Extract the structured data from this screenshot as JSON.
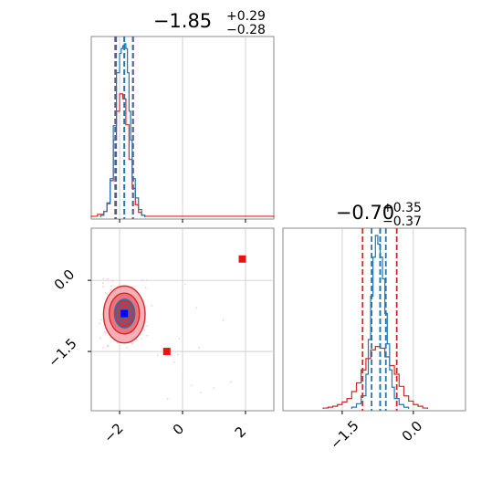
{
  "chart_data": [
    {
      "type": "histogram",
      "panel": "p0 marginal",
      "title": {
        "main": "−1.85",
        "sup": "+0.29",
        "sub": "−0.28"
      },
      "xlim": [
        -2.9,
        2.9
      ],
      "grid": true,
      "quantile_lines": {
        "red": [
          -2.14,
          -1.85,
          -1.57
        ],
        "blue": [
          -2.11,
          -1.85,
          -1.58
        ]
      },
      "red_hist": {
        "bin_edges": [
          -2.9,
          -2.7,
          -2.5,
          -2.4,
          -2.3,
          -2.2,
          -2.1,
          -2.0,
          -1.9,
          -1.8,
          -1.7,
          -1.6,
          -1.5,
          -1.4,
          -1.3,
          -1.2,
          -1.0,
          0.0,
          1.0,
          2.0,
          2.9
        ],
        "counts": [
          1,
          3,
          6,
          14,
          38,
          80,
          110,
          128,
          123,
          96,
          60,
          30,
          13,
          5,
          2,
          1,
          1,
          1,
          1,
          1
        ]
      },
      "blue_hist": {
        "bin_edges": [
          -2.6,
          -2.5,
          -2.4,
          -2.3,
          -2.2,
          -2.1,
          -2.0,
          -1.95,
          -1.9,
          -1.85,
          -1.8,
          -1.75,
          -1.7,
          -1.65,
          -1.6,
          -1.5,
          -1.4,
          -1.3,
          -1.2
        ],
        "counts": [
          2,
          6,
          15,
          40,
          95,
          150,
          170,
          175,
          178,
          180,
          175,
          150,
          110,
          80,
          40,
          20,
          8,
          2
        ]
      }
    },
    {
      "type": "scatter",
      "panel": "p0 vs p1 contours",
      "xlim": [
        -2.9,
        2.9
      ],
      "ylim": [
        -2.75,
        1.1
      ],
      "x_ticks": [
        "−2",
        "0",
        "2"
      ],
      "y_ticks": [
        "0.0",
        "−1.5"
      ],
      "grid": true,
      "red_contours": [
        {
          "cx": -1.85,
          "cy": -0.72,
          "rx": 0.66,
          "ry": 0.6
        },
        {
          "cx": -1.85,
          "cy": -0.7,
          "rx": 0.48,
          "ry": 0.43
        },
        {
          "cx": -1.85,
          "cy": -0.7,
          "rx": 0.3,
          "ry": 0.27
        }
      ],
      "blue_contours": [
        {
          "cx": -1.84,
          "cy": -0.7,
          "rx": 0.32,
          "ry": 0.3
        },
        {
          "cx": -1.84,
          "cy": -0.7,
          "rx": 0.22,
          "ry": 0.2
        },
        {
          "cx": -1.84,
          "cy": -0.7,
          "rx": 0.12,
          "ry": 0.11
        }
      ],
      "markers": [
        {
          "x": 1.9,
          "y": 0.45,
          "color": "#ee1111"
        },
        {
          "x": -0.5,
          "y": -1.5,
          "color": "#ee1111"
        },
        {
          "x": -1.85,
          "y": -0.7,
          "color": "#0000ff"
        }
      ]
    },
    {
      "type": "histogram",
      "panel": "p1 marginal",
      "title": {
        "main": "−0.70",
        "sup": "+0.35",
        "sub": "−0.37"
      },
      "xlim": [
        -2.75,
        1.1
      ],
      "x_ticks": [
        "−1.5",
        "0.0"
      ],
      "grid": true,
      "quantile_lines": {
        "red": [
          -1.07,
          -0.7,
          -0.35
        ],
        "blue": [
          -0.88,
          -0.7,
          -0.58
        ]
      },
      "red_hist": {
        "bin_edges": [
          -1.9,
          -1.8,
          -1.7,
          -1.6,
          -1.5,
          -1.4,
          -1.3,
          -1.2,
          -1.1,
          -1.0,
          -0.9,
          -0.8,
          -0.7,
          -0.6,
          -0.5,
          -0.4,
          -0.3,
          -0.2,
          -0.1,
          0.0,
          0.1,
          0.2,
          0.3
        ],
        "counts": [
          1,
          2,
          3,
          5,
          8,
          12,
          20,
          30,
          45,
          58,
          68,
          72,
          70,
          60,
          50,
          40,
          26,
          15,
          9,
          5,
          3,
          1
        ]
      },
      "blue_hist": {
        "bin_edges": [
          -1.3,
          -1.2,
          -1.1,
          -1.0,
          -0.95,
          -0.9,
          -0.85,
          -0.8,
          -0.75,
          -0.7,
          -0.65,
          -0.6,
          -0.55,
          -0.5,
          -0.45,
          -0.4,
          -0.3,
          -0.2,
          -0.1
        ],
        "counts": [
          2,
          6,
          15,
          40,
          80,
          130,
          175,
          200,
          190,
          175,
          150,
          110,
          75,
          45,
          25,
          12,
          5,
          2
        ]
      }
    }
  ],
  "colors": {
    "red": "#d62728",
    "blue": "#1f77b4",
    "marker_red": "#ee1111",
    "marker_blue": "#0000ff"
  }
}
